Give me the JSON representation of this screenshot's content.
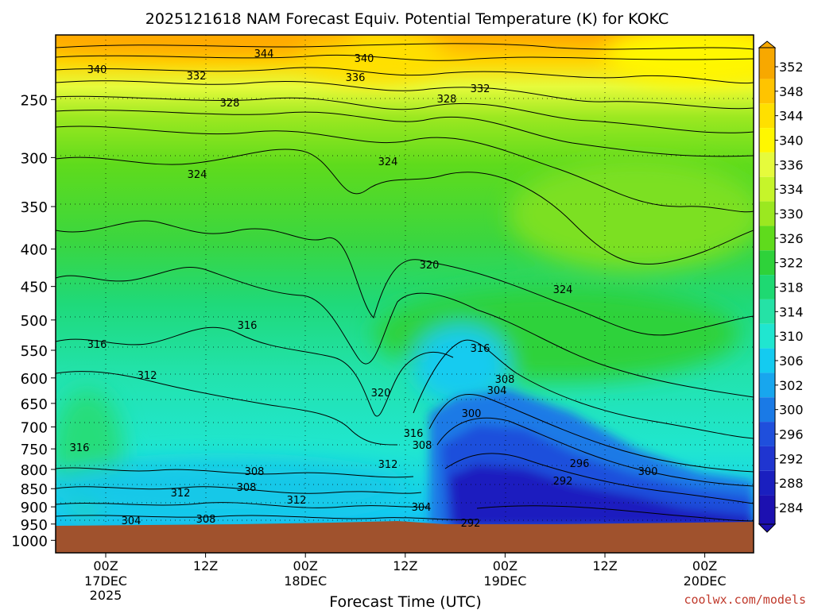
{
  "chart_data": {
    "type": "heatmap",
    "title": "2025121618 NAM Forecast Equiv. Potential Temperature (K) for KOKC",
    "xlabel": "Forecast Time (UTC)",
    "ylabel": "",
    "credit": "coolwx.com/models",
    "y_scale": "log-pressure",
    "y_ticks": [
      "250",
      "300",
      "350",
      "400",
      "450",
      "500",
      "550",
      "600",
      "650",
      "700",
      "750",
      "800",
      "850",
      "900",
      "950",
      "1000"
    ],
    "x_ticks": [
      {
        "hour": "00Z",
        "date": "17DEC",
        "year": "2025"
      },
      {
        "hour": "12Z",
        "date": "",
        "year": ""
      },
      {
        "hour": "00Z",
        "date": "18DEC",
        "year": ""
      },
      {
        "hour": "12Z",
        "date": "",
        "year": ""
      },
      {
        "hour": "00Z",
        "date": "19DEC",
        "year": ""
      },
      {
        "hour": "12Z",
        "date": "",
        "year": ""
      },
      {
        "hour": "00Z",
        "date": "20DEC",
        "year": ""
      }
    ],
    "colorbar": {
      "labels": [
        "352",
        "348",
        "344",
        "340",
        "336",
        "334",
        "330",
        "326",
        "322",
        "318",
        "314",
        "310",
        "306",
        "302",
        "300",
        "296",
        "292",
        "288",
        "284"
      ],
      "colors": [
        "#f7a800",
        "#ffc400",
        "#ffe000",
        "#fff700",
        "#e6fb3c",
        "#c6f52a",
        "#9be820",
        "#5fdb1c",
        "#2ed23a",
        "#1ed972",
        "#25e2a6",
        "#20e6d0",
        "#14cbf0",
        "#18a6ee",
        "#1a7ae6",
        "#1f4fdc",
        "#1f35d0",
        "#1a1fbf",
        "#1c10b0"
      ]
    },
    "contour_labels": [
      {
        "text": "344"
      },
      {
        "text": "340"
      },
      {
        "text": "340"
      },
      {
        "text": "332"
      },
      {
        "text": "336"
      },
      {
        "text": "332"
      },
      {
        "text": "328"
      },
      {
        "text": "328"
      },
      {
        "text": "324"
      },
      {
        "text": "324"
      },
      {
        "text": "320"
      },
      {
        "text": "324"
      },
      {
        "text": "316"
      },
      {
        "text": "316"
      },
      {
        "text": "316"
      },
      {
        "text": "312"
      },
      {
        "text": "320"
      },
      {
        "text": "308"
      },
      {
        "text": "304"
      },
      {
        "text": "300"
      },
      {
        "text": "316"
      },
      {
        "text": "308"
      },
      {
        "text": "316"
      },
      {
        "text": "312"
      },
      {
        "text": "296"
      },
      {
        "text": "292"
      },
      {
        "text": "300"
      },
      {
        "text": "308"
      },
      {
        "text": "308"
      },
      {
        "text": "312"
      },
      {
        "text": "312"
      },
      {
        "text": "304"
      },
      {
        "text": "304"
      },
      {
        "text": "308"
      },
      {
        "text": "292"
      }
    ]
  }
}
